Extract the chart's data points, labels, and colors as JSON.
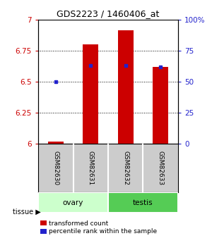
{
  "title": "GDS2223 / 1460406_at",
  "samples": [
    "GSM82630",
    "GSM82631",
    "GSM82632",
    "GSM82633"
  ],
  "tissues": [
    "ovary",
    "ovary",
    "testis",
    "testis"
  ],
  "red_values": [
    6.02,
    6.8,
    6.91,
    6.62
  ],
  "blue_values": [
    0.5,
    0.63,
    0.63,
    0.62
  ],
  "ylim_left": [
    6.0,
    7.0
  ],
  "ylim_right": [
    0.0,
    1.0
  ],
  "yticks_left": [
    6.0,
    6.25,
    6.5,
    6.75,
    7.0
  ],
  "yticks_left_labels": [
    "6",
    "6.25",
    "6.5",
    "6.75",
    "7"
  ],
  "yticks_right": [
    0.0,
    0.25,
    0.5,
    0.75,
    1.0
  ],
  "yticks_right_labels": [
    "0",
    "25",
    "50",
    "75",
    "100%"
  ],
  "bar_color": "#cc0000",
  "dot_color": "#2222cc",
  "tissue_colors": {
    "ovary": "#ccffcc",
    "testis": "#55cc55"
  },
  "sample_box_color": "#cccccc",
  "legend_red": "transformed count",
  "legend_blue": "percentile rank within the sample",
  "background_color": "#ffffff"
}
